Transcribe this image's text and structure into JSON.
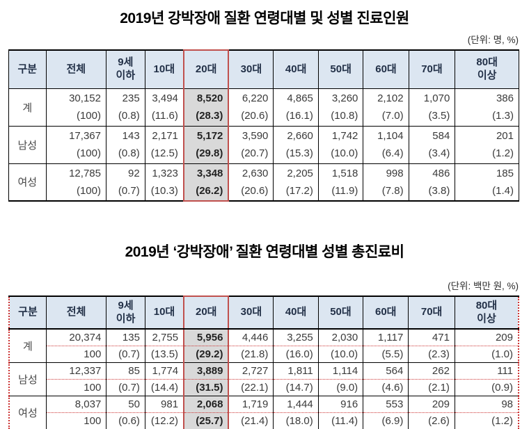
{
  "colors": {
    "header_bg": "#dce6f1",
    "header_text": "#223047",
    "highlight_border": "#c0504d",
    "highlight_bg": "#d9d9d9",
    "dotted_line": "#cc3333"
  },
  "sections": [
    {
      "title": "2019년 강박장애 질환 연령대별 및 성별 진료인원",
      "unit": "(단위: 명, %)",
      "columns": [
        "구분",
        "전체",
        "9세\n이하",
        "10대",
        "20대",
        "30대",
        "40대",
        "50대",
        "60대",
        "70대",
        "80대\n이상"
      ],
      "highlight_column": "20대",
      "highlight_index": 3,
      "dotted": false,
      "rows": [
        {
          "label": "계",
          "cells": [
            [
              "30,152",
              "(100)"
            ],
            [
              "235",
              "(0.8)"
            ],
            [
              "3,494",
              "(11.6)"
            ],
            [
              "8,520",
              "(28.3)"
            ],
            [
              "6,220",
              "(20.6)"
            ],
            [
              "4,865",
              "(16.1)"
            ],
            [
              "3,260",
              "(10.8)"
            ],
            [
              "2,102",
              "(7.0)"
            ],
            [
              "1,070",
              "(3.5)"
            ],
            [
              "386",
              "(1.3)"
            ]
          ]
        },
        {
          "label": "남성",
          "cells": [
            [
              "17,367",
              "(100)"
            ],
            [
              "143",
              "(0.8)"
            ],
            [
              "2,171",
              "(12.5)"
            ],
            [
              "5,172",
              "(29.8)"
            ],
            [
              "3,590",
              "(20.7)"
            ],
            [
              "2,660",
              "(15.3)"
            ],
            [
              "1,742",
              "(10.0)"
            ],
            [
              "1,104",
              "(6.4)"
            ],
            [
              "584",
              "(3.4)"
            ],
            [
              "201",
              "(1.2)"
            ]
          ]
        },
        {
          "label": "여성",
          "cells": [
            [
              "12,785",
              "(100)"
            ],
            [
              "92",
              "(0.7)"
            ],
            [
              "1,323",
              "(10.3)"
            ],
            [
              "3,348",
              "(26.2)"
            ],
            [
              "2,630",
              "(20.6)"
            ],
            [
              "2,205",
              "(17.2)"
            ],
            [
              "1,518",
              "(11.9)"
            ],
            [
              "998",
              "(7.8)"
            ],
            [
              "486",
              "(3.8)"
            ],
            [
              "185",
              "(1.4)"
            ]
          ]
        }
      ]
    },
    {
      "title": "2019년 ‘강박장애’ 질환 연령대별 성별 총진료비",
      "unit": "(단위: 백만 원, %)",
      "columns": [
        "구분",
        "전체",
        "9세\n이하",
        "10대",
        "20대",
        "30대",
        "40대",
        "50대",
        "60대",
        "70대",
        "80대\n이상"
      ],
      "highlight_column": "20대",
      "highlight_index": 3,
      "dotted": true,
      "rows": [
        {
          "label": "계",
          "cells": [
            [
              "20,374",
              "100"
            ],
            [
              "135",
              "(0.7)"
            ],
            [
              "2,755",
              "(13.5)"
            ],
            [
              "5,956",
              "(29.2)"
            ],
            [
              "4,446",
              "(21.8)"
            ],
            [
              "3,255",
              "(16.0)"
            ],
            [
              "2,030",
              "(10.0)"
            ],
            [
              "1,117",
              "(5.5)"
            ],
            [
              "471",
              "(2.3)"
            ],
            [
              "209",
              "(1.0)"
            ]
          ]
        },
        {
          "label": "남성",
          "cells": [
            [
              "12,337",
              "100"
            ],
            [
              "85",
              "(0.7)"
            ],
            [
              "1,774",
              "(14.4)"
            ],
            [
              "3,889",
              "(31.5)"
            ],
            [
              "2,727",
              "(22.1)"
            ],
            [
              "1,811",
              "(14.7)"
            ],
            [
              "1,114",
              "(9.0)"
            ],
            [
              "564",
              "(4.6)"
            ],
            [
              "262",
              "(2.1)"
            ],
            [
              "111",
              "(0.9)"
            ]
          ]
        },
        {
          "label": "여성",
          "cells": [
            [
              "8,037",
              "100"
            ],
            [
              "50",
              "(0.6)"
            ],
            [
              "981",
              "(12.2)"
            ],
            [
              "2,068",
              "(25.7)"
            ],
            [
              "1,719",
              "(21.4)"
            ],
            [
              "1,444",
              "(18.0)"
            ],
            [
              "916",
              "(11.4)"
            ],
            [
              "553",
              "(6.9)"
            ],
            [
              "209",
              "(2.6)"
            ],
            [
              "98",
              "(1.2)"
            ]
          ]
        }
      ]
    }
  ]
}
